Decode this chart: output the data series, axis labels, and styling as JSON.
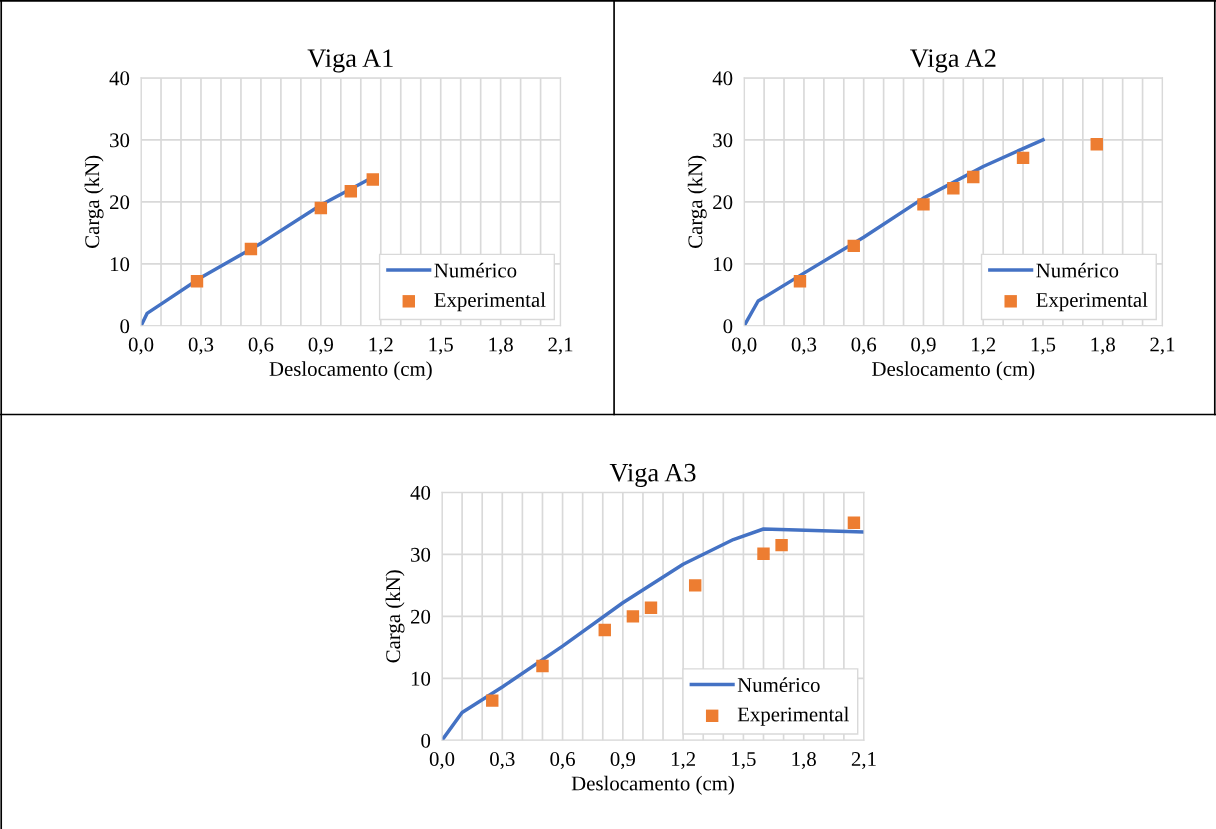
{
  "chart_data": [
    {
      "type": "line",
      "title": "Viga A1",
      "xlabel": "Deslocamento (cm)",
      "ylabel": "Carga (kN)",
      "xlim": [
        0,
        2.1
      ],
      "ylim": [
        0,
        40
      ],
      "xticks": [
        {
          "value": 0,
          "label": "0,0"
        },
        {
          "value": 0.1,
          "label": null
        },
        {
          "value": 0.2,
          "label": null
        },
        {
          "value": 0.3,
          "label": "0,3"
        },
        {
          "value": 0.4,
          "label": null
        },
        {
          "value": 0.5,
          "label": null
        },
        {
          "value": 0.6,
          "label": "0,6"
        },
        {
          "value": 0.7,
          "label": null
        },
        {
          "value": 0.8,
          "label": null
        },
        {
          "value": 0.9,
          "label": "0,9"
        },
        {
          "value": 1.0,
          "label": null
        },
        {
          "value": 1.1,
          "label": null
        },
        {
          "value": 1.2,
          "label": "1,2"
        },
        {
          "value": 1.3,
          "label": null
        },
        {
          "value": 1.4,
          "label": null
        },
        {
          "value": 1.5,
          "label": "1,5"
        },
        {
          "value": 1.6,
          "label": null
        },
        {
          "value": 1.7,
          "label": null
        },
        {
          "value": 1.8,
          "label": "1,8"
        },
        {
          "value": 1.9,
          "label": null
        },
        {
          "value": 2.0,
          "label": null
        },
        {
          "value": 2.1,
          "label": "2,1"
        }
      ],
      "yticks": [
        0,
        10,
        20,
        30,
        40
      ],
      "grid": true,
      "legend": "bottom right",
      "series": [
        {
          "name": "Numérico",
          "color": "#4472c4",
          "marker": "none",
          "line_style": "solid",
          "x": [
            0,
            0.03,
            0.1,
            0.3,
            0.6,
            0.9,
            1.15
          ],
          "values": [
            0,
            2,
            3.5,
            7.8,
            13.3,
            19.5,
            23.8
          ]
        },
        {
          "name": "Experimental",
          "type": "scatter",
          "color": "#ed7d31",
          "marker": "square",
          "x": [
            0.28,
            0.55,
            0.9,
            1.05,
            1.16
          ],
          "values": [
            7.2,
            12.4,
            19.0,
            21.7,
            23.6
          ]
        }
      ]
    },
    {
      "type": "line",
      "title": "Viga A2",
      "xlabel": "Deslocamento (cm)",
      "ylabel": "Carga (kN)",
      "xlim": [
        0,
        2.1
      ],
      "ylim": [
        0,
        40
      ],
      "xticks": [
        {
          "value": 0,
          "label": "0,0"
        },
        {
          "value": 0.1,
          "label": null
        },
        {
          "value": 0.2,
          "label": null
        },
        {
          "value": 0.3,
          "label": "0,3"
        },
        {
          "value": 0.4,
          "label": null
        },
        {
          "value": 0.5,
          "label": null
        },
        {
          "value": 0.6,
          "label": "0,6"
        },
        {
          "value": 0.7,
          "label": null
        },
        {
          "value": 0.8,
          "label": null
        },
        {
          "value": 0.9,
          "label": "0,9"
        },
        {
          "value": 1.0,
          "label": null
        },
        {
          "value": 1.1,
          "label": null
        },
        {
          "value": 1.2,
          "label": "1,2"
        },
        {
          "value": 1.3,
          "label": null
        },
        {
          "value": 1.4,
          "label": null
        },
        {
          "value": 1.5,
          "label": "1,5"
        },
        {
          "value": 1.6,
          "label": null
        },
        {
          "value": 1.7,
          "label": null
        },
        {
          "value": 1.8,
          "label": "1,8"
        },
        {
          "value": 1.9,
          "label": null
        },
        {
          "value": 2.0,
          "label": null
        },
        {
          "value": 2.1,
          "label": "2,1"
        }
      ],
      "yticks": [
        0,
        10,
        20,
        30,
        40
      ],
      "grid": true,
      "legend": "bottom right",
      "series": [
        {
          "name": "Numérico",
          "color": "#4472c4",
          "marker": "none",
          "line_style": "solid",
          "x": [
            0,
            0.07,
            0.3,
            0.6,
            0.9,
            1.2,
            1.4,
            1.5
          ],
          "values": [
            0,
            4,
            8.5,
            14.3,
            20.6,
            25.7,
            28.6,
            30
          ]
        },
        {
          "name": "Experimental",
          "type": "scatter",
          "color": "#ed7d31",
          "marker": "square",
          "x": [
            0.28,
            0.55,
            0.9,
            1.05,
            1.15,
            1.4,
            1.77
          ],
          "values": [
            7.2,
            12.9,
            19.6,
            22.2,
            24.0,
            27.1,
            29.3
          ]
        }
      ]
    },
    {
      "type": "line",
      "title": "Viga A3",
      "xlabel": "Deslocamento (cm)",
      "ylabel": "Carga (kN)",
      "xlim": [
        0,
        2.1
      ],
      "ylim": [
        0,
        40
      ],
      "xticks": [
        {
          "value": 0,
          "label": "0,0"
        },
        {
          "value": 0.1,
          "label": null
        },
        {
          "value": 0.2,
          "label": null
        },
        {
          "value": 0.3,
          "label": "0,3"
        },
        {
          "value": 0.4,
          "label": null
        },
        {
          "value": 0.5,
          "label": null
        },
        {
          "value": 0.6,
          "label": "0,6"
        },
        {
          "value": 0.7,
          "label": null
        },
        {
          "value": 0.8,
          "label": null
        },
        {
          "value": 0.9,
          "label": "0,9"
        },
        {
          "value": 1.0,
          "label": null
        },
        {
          "value": 1.1,
          "label": null
        },
        {
          "value": 1.2,
          "label": "1,2"
        },
        {
          "value": 1.3,
          "label": null
        },
        {
          "value": 1.4,
          "label": null
        },
        {
          "value": 1.5,
          "label": "1,5"
        },
        {
          "value": 1.6,
          "label": null
        },
        {
          "value": 1.7,
          "label": null
        },
        {
          "value": 1.8,
          "label": "1,8"
        },
        {
          "value": 1.9,
          "label": null
        },
        {
          "value": 2.0,
          "label": null
        },
        {
          "value": 2.1,
          "label": "2,1"
        }
      ],
      "yticks": [
        0,
        10,
        20,
        30,
        40
      ],
      "grid": true,
      "legend": "bottom right",
      "series": [
        {
          "name": "Numérico",
          "color": "#4472c4",
          "marker": "none",
          "line_style": "solid",
          "x": [
            0,
            0.1,
            0.3,
            0.6,
            0.9,
            1.2,
            1.45,
            1.6,
            2.1
          ],
          "values": [
            0,
            4.5,
            8.6,
            15.2,
            22.2,
            28.4,
            32.4,
            34.1,
            33.6
          ]
        },
        {
          "name": "Experimental",
          "type": "scatter",
          "color": "#ed7d31",
          "marker": "square",
          "x": [
            0.25,
            0.5,
            0.81,
            0.95,
            1.04,
            1.26,
            1.6,
            1.69,
            2.05
          ],
          "values": [
            6.4,
            12.0,
            17.8,
            20.0,
            21.4,
            25.0,
            30.1,
            31.5,
            35.1
          ]
        }
      ]
    }
  ]
}
